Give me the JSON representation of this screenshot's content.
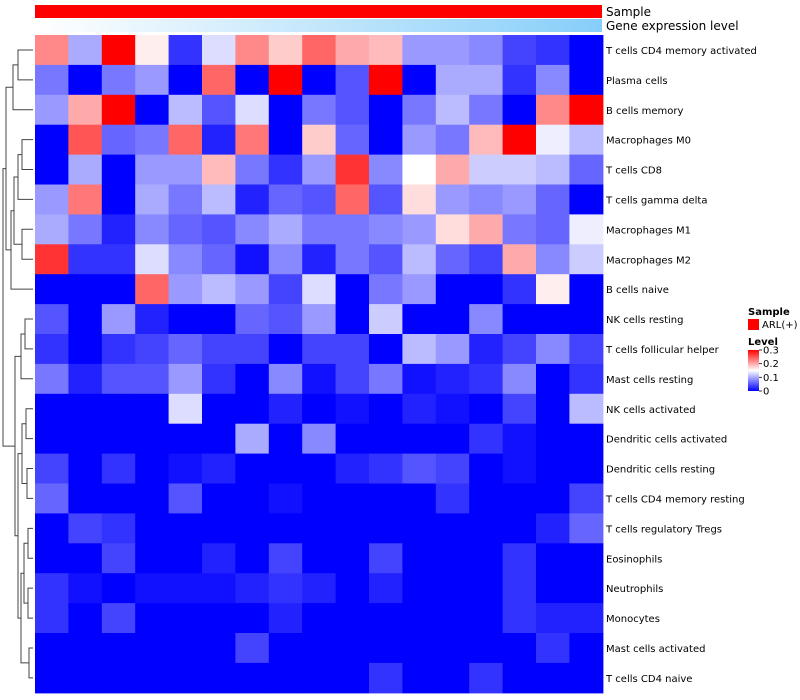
{
  "chart_data": {
    "type": "heatmap",
    "title": "",
    "annotation_tracks": [
      {
        "label": "Sample",
        "color": "#ff0000"
      },
      {
        "label": "Gene expression level",
        "gradient": [
          "#ffffff",
          "#87cefa"
        ]
      }
    ],
    "rows": [
      "T cells CD4 memory activated",
      "Plasma cells",
      "B cells memory",
      "Macrophages M0",
      "T cells CD8",
      "T cells gamma delta",
      "Macrophages M1",
      "Macrophages M2",
      "B cells naive",
      "NK cells resting",
      "T cells follicular helper",
      "Mast cells resting",
      "NK cells activated",
      "Dendritic cells activated",
      "Dendritic cells resting",
      "T cells CD4 memory resting",
      "T cells regulatory  Tregs",
      "Eosinophils",
      "Neutrophils",
      "Monocytes",
      "Mast cells activated",
      "T cells CD4 naive"
    ],
    "n_columns": 17,
    "values": [
      [
        0.22,
        0.1,
        0.3,
        0.16,
        0.03,
        0.13,
        0.22,
        0.18,
        0.24,
        0.2,
        0.19,
        0.09,
        0.09,
        0.08,
        0.04,
        0.03,
        0.0
      ],
      [
        0.07,
        0.0,
        0.07,
        0.09,
        0.0,
        0.24,
        0.0,
        0.3,
        0.0,
        0.05,
        0.3,
        0.0,
        0.1,
        0.1,
        0.03,
        0.08,
        0.0
      ],
      [
        0.09,
        0.2,
        0.3,
        0.0,
        0.11,
        0.05,
        0.13,
        0.0,
        0.07,
        0.05,
        0.0,
        0.07,
        0.11,
        0.07,
        0.0,
        0.22,
        0.3
      ],
      [
        0.0,
        0.25,
        0.06,
        0.07,
        0.24,
        0.02,
        0.23,
        0.0,
        0.18,
        0.06,
        0.0,
        0.09,
        0.07,
        0.19,
        0.3,
        0.14,
        0.11
      ],
      [
        0.0,
        0.1,
        0.0,
        0.09,
        0.09,
        0.19,
        0.07,
        0.03,
        0.09,
        0.27,
        0.08,
        0.15,
        0.2,
        0.12,
        0.12,
        0.11,
        0.06
      ],
      [
        0.09,
        0.23,
        0.0,
        0.1,
        0.07,
        0.11,
        0.02,
        0.06,
        0.05,
        0.24,
        0.05,
        0.17,
        0.09,
        0.08,
        0.09,
        0.06,
        0.0
      ],
      [
        0.1,
        0.07,
        0.02,
        0.08,
        0.06,
        0.05,
        0.08,
        0.1,
        0.07,
        0.07,
        0.08,
        0.09,
        0.17,
        0.2,
        0.07,
        0.06,
        0.14
      ],
      [
        0.27,
        0.03,
        0.03,
        0.13,
        0.08,
        0.06,
        0.01,
        0.08,
        0.02,
        0.07,
        0.05,
        0.11,
        0.06,
        0.04,
        0.2,
        0.08,
        0.12
      ],
      [
        0.0,
        0.0,
        0.0,
        0.24,
        0.09,
        0.11,
        0.09,
        0.04,
        0.13,
        0.0,
        0.07,
        0.09,
        0.0,
        0.0,
        0.03,
        0.16,
        0.0
      ],
      [
        0.05,
        0.0,
        0.09,
        0.02,
        0.0,
        0.0,
        0.06,
        0.05,
        0.09,
        0.0,
        0.12,
        0.0,
        0.0,
        0.08,
        0.0,
        0.0,
        0.0
      ],
      [
        0.03,
        0.0,
        0.03,
        0.04,
        0.06,
        0.04,
        0.04,
        0.0,
        0.04,
        0.04,
        0.0,
        0.11,
        0.09,
        0.02,
        0.04,
        0.08,
        0.04
      ],
      [
        0.07,
        0.02,
        0.05,
        0.05,
        0.09,
        0.03,
        0.0,
        0.08,
        0.01,
        0.04,
        0.07,
        0.01,
        0.02,
        0.03,
        0.08,
        0.0,
        0.03
      ],
      [
        0.0,
        0.0,
        0.0,
        0.0,
        0.13,
        0.0,
        0.0,
        0.02,
        0.0,
        0.01,
        0.0,
        0.02,
        0.01,
        0.0,
        0.04,
        0.0,
        0.11
      ],
      [
        0.0,
        0.0,
        0.0,
        0.0,
        0.0,
        0.0,
        0.1,
        0.0,
        0.08,
        0.0,
        0.0,
        0.0,
        0.0,
        0.03,
        0.01,
        0.0,
        0.0
      ],
      [
        0.04,
        0.0,
        0.03,
        0.0,
        0.01,
        0.02,
        0.0,
        0.0,
        0.0,
        0.02,
        0.03,
        0.05,
        0.04,
        0.0,
        0.01,
        0.0,
        0.0
      ],
      [
        0.06,
        0.0,
        0.0,
        0.0,
        0.05,
        0.0,
        0.0,
        0.01,
        0.0,
        0.0,
        0.0,
        0.0,
        0.03,
        0.0,
        0.0,
        0.0,
        0.04
      ],
      [
        0.0,
        0.04,
        0.03,
        0.0,
        0.0,
        0.0,
        0.0,
        0.0,
        0.0,
        0.0,
        0.0,
        0.0,
        0.0,
        0.0,
        0.0,
        0.02,
        0.06
      ],
      [
        0.0,
        0.0,
        0.04,
        0.0,
        0.0,
        0.02,
        0.0,
        0.04,
        0.0,
        0.0,
        0.04,
        0.0,
        0.0,
        0.0,
        0.03,
        0.0,
        0.0
      ],
      [
        0.03,
        0.01,
        0.0,
        0.01,
        0.01,
        0.01,
        0.02,
        0.03,
        0.02,
        0.0,
        0.02,
        0.0,
        0.0,
        0.0,
        0.03,
        0.0,
        0.0
      ],
      [
        0.03,
        0.0,
        0.04,
        0.0,
        0.0,
        0.0,
        0.0,
        0.02,
        0.0,
        0.0,
        0.0,
        0.0,
        0.0,
        0.0,
        0.03,
        0.02,
        0.02
      ],
      [
        0.0,
        0.0,
        0.0,
        0.0,
        0.0,
        0.0,
        0.04,
        0.0,
        0.0,
        0.0,
        0.0,
        0.0,
        0.0,
        0.0,
        0.0,
        0.03,
        0.0
      ],
      [
        0.0,
        0.0,
        0.0,
        0.0,
        0.0,
        0.0,
        0.0,
        0.0,
        0.0,
        0.0,
        0.03,
        0.0,
        0.0,
        0.03,
        0.0,
        0.0,
        0.0
      ]
    ],
    "legend": {
      "sample_title": "Sample",
      "sample_entry": "ARL(+)",
      "sample_color": "#ff0000",
      "level_title": "Level",
      "level_ticks": [
        0.3,
        0.2,
        0.1,
        0
      ],
      "level_tick_labels": [
        "0.3",
        "0.2",
        "0.1",
        "0"
      ],
      "color_low": "#0000ff",
      "color_mid": "#ffffff",
      "color_high": "#ff0000",
      "vmin": 0,
      "vmid": 0.15,
      "vmax": 0.3
    }
  }
}
